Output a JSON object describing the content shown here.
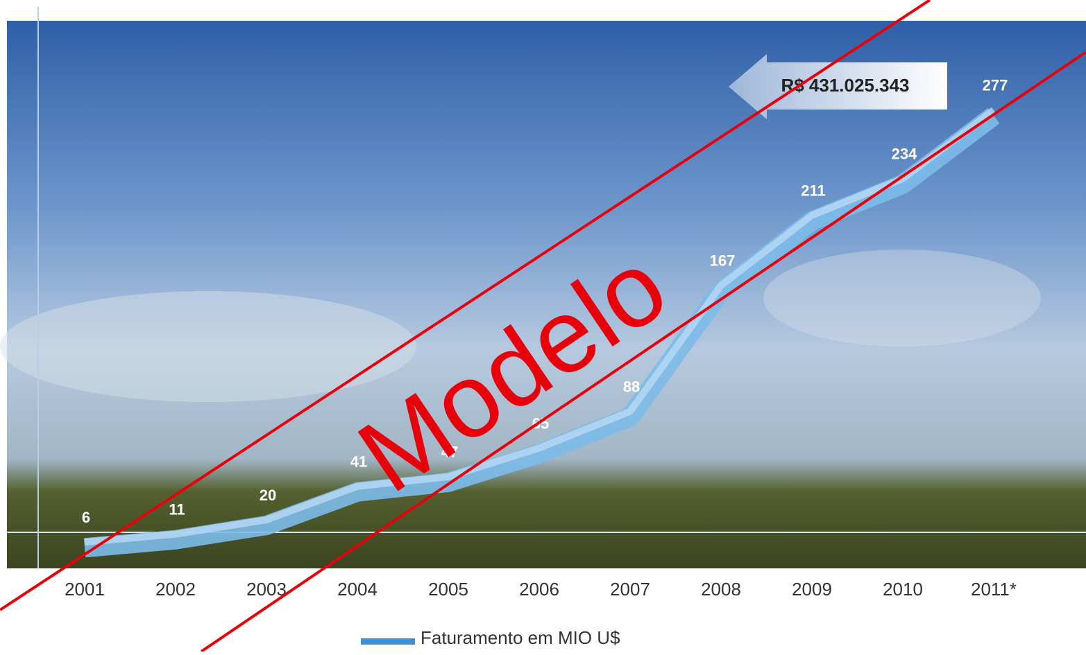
{
  "chart_data": {
    "type": "line",
    "categories": [
      "2001",
      "2002",
      "2003",
      "2004",
      "2005",
      "2006",
      "2007",
      "2008",
      "2009",
      "2010",
      "2011*"
    ],
    "series": [
      {
        "name": "Faturamento em MIO U$",
        "color": "#7cbbe9",
        "values": [
          6,
          11,
          20,
          41,
          47,
          65,
          88,
          167,
          211,
          234,
          277
        ]
      }
    ],
    "ylim": [
      0,
      340
    ],
    "annotation": "R$ 431.025.343",
    "watermark": "Modelo"
  }
}
